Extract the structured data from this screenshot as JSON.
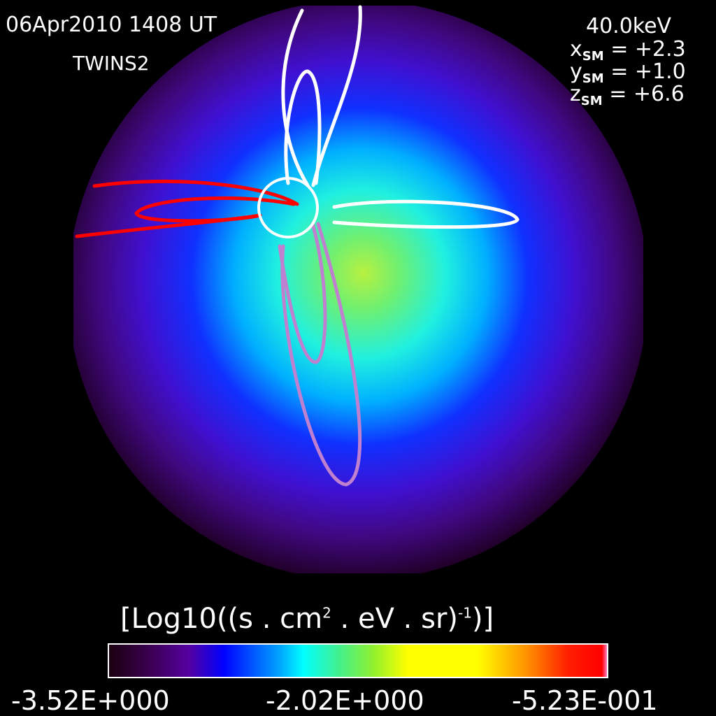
{
  "header": {
    "date_time": "06Apr2010 1408 UT",
    "satellite": "TWINS2",
    "energy": "40.0keV",
    "coords": [
      {
        "axis": "x",
        "sub": "SM",
        "value": "= +2.3"
      },
      {
        "axis": "y",
        "sub": "SM",
        "value": "= +1.0"
      },
      {
        "axis": "z",
        "sub": "SM",
        "value": "= +6.6"
      }
    ]
  },
  "chart_data": {
    "type": "heatmap",
    "title": "",
    "colorbar": {
      "label_main": "[Log10((s . cm",
      "label_sup1": "2",
      "label_mid": " . eV . sr)",
      "label_sup2": "-1",
      "label_end": ")]",
      "min": -3.52,
      "max": -0.523,
      "tick_labels": [
        "-3.52E+000",
        "-2.02E+000",
        "-5.23E-001"
      ],
      "colormap": [
        "#1a0010",
        "#5500a0",
        "#0000ff",
        "#00ffff",
        "#90f030",
        "#ffff00",
        "#ff9000",
        "#ff0000"
      ]
    },
    "field_line_colors": {
      "north": "#ffffff",
      "dusk": "#ff0000",
      "south": "#c080d0"
    }
  }
}
